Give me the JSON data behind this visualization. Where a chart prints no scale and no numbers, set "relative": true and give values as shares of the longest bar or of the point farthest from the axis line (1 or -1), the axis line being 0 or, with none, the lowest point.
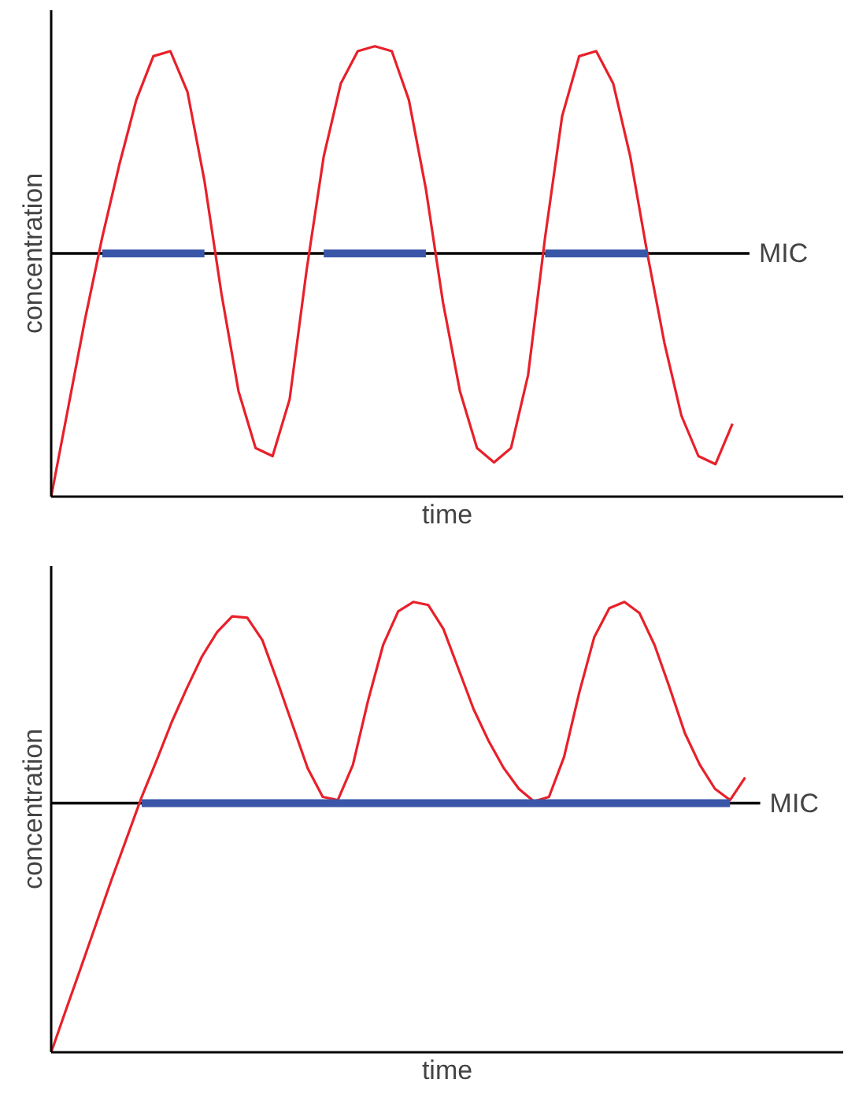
{
  "chart_data": [
    {
      "type": "line",
      "relative": true,
      "xlabel": "time",
      "ylabel": "concentration",
      "marker": "none",
      "line_style": "solid",
      "categories": [
        null,
        null,
        null,
        null,
        null,
        null,
        null,
        null,
        null,
        null,
        null,
        null,
        null,
        null,
        null,
        null,
        null,
        null,
        null,
        null,
        null,
        null,
        null,
        null,
        null,
        null,
        null,
        null,
        null,
        null,
        null,
        null,
        null,
        null,
        null,
        null,
        null,
        null,
        null,
        null,
        null
      ],
      "series": [
        {
          "color": "#e8202a",
          "values": [
            0,
            0.198,
            0.396,
            0.576,
            0.737,
            0.881,
            0.978,
            0.989,
            0.899,
            0.701,
            0.45,
            0.234,
            0.108,
            0.09,
            0.216,
            0.504,
            0.755,
            0.917,
            0.989,
            1,
            0.989,
            0.881,
            0.683,
            0.432,
            0.234,
            0.108,
            0.076,
            0.108,
            0.27,
            0.576,
            0.845,
            0.978,
            0.989,
            0.917,
            0.755,
            0.54,
            0.342,
            0.18,
            0.09,
            0.072,
            0.162
          ]
        },
        {
          "color": "#3a56a8",
          "values": [
            null,
            null,
            null,
            0.54,
            0.54,
            0.54,
            0.54,
            0.54,
            0.54,
            0.54,
            null,
            null,
            null,
            null,
            null,
            null,
            0.54,
            0.54,
            0.54,
            0.54,
            0.54,
            0.54,
            0.54,
            null,
            null,
            null,
            null,
            null,
            null,
            0.54,
            0.54,
            0.54,
            0.54,
            0.54,
            0.54,
            0.54,
            null,
            null,
            null,
            null,
            null
          ]
        }
      ],
      "ref_lines": [
        {
          "axis": "y",
          "value": 0.54,
          "label": "MIC",
          "color": "#000000"
        }
      ]
    },
    {
      "type": "line",
      "relative": true,
      "xlabel": "time",
      "ylabel": "concentration",
      "marker": "none",
      "line_style": "solid",
      "categories": [
        null,
        null,
        null,
        null,
        null,
        null,
        null,
        null,
        null,
        null,
        null,
        null,
        null,
        null,
        null,
        null,
        null,
        null,
        null,
        null,
        null,
        null,
        null,
        null,
        null,
        null,
        null,
        null,
        null,
        null,
        null,
        null,
        null,
        null,
        null,
        null,
        null,
        null,
        null,
        null,
        null,
        null,
        null,
        null,
        null,
        null,
        null
      ],
      "series": [
        {
          "color": "#e8202a",
          "values": [
            0,
            0.096,
            0.191,
            0.287,
            0.383,
            0.475,
            0.567,
            0.649,
            0.734,
            0.809,
            0.879,
            0.933,
            0.968,
            0.965,
            0.915,
            0.823,
            0.727,
            0.631,
            0.567,
            0.56,
            0.638,
            0.78,
            0.904,
            0.979,
            1,
            0.993,
            0.94,
            0.851,
            0.762,
            0.691,
            0.631,
            0.585,
            0.557,
            0.567,
            0.656,
            0.798,
            0.922,
            0.986,
            1,
            0.975,
            0.904,
            0.809,
            0.709,
            0.638,
            0.585,
            0.56,
            0.61
          ]
        },
        {
          "color": "#3a56a8",
          "values": [
            null,
            null,
            null,
            null,
            null,
            null,
            0.553,
            0.553,
            0.553,
            0.553,
            0.553,
            0.553,
            0.553,
            0.553,
            0.553,
            0.553,
            0.553,
            0.553,
            0.553,
            0.553,
            0.553,
            0.553,
            0.553,
            0.553,
            0.553,
            0.553,
            0.553,
            0.553,
            0.553,
            0.553,
            0.553,
            0.553,
            0.553,
            0.553,
            0.553,
            0.553,
            0.553,
            0.553,
            0.553,
            0.553,
            0.553,
            0.553,
            0.553,
            0.553,
            0.553,
            0.553,
            null
          ]
        }
      ],
      "ref_lines": [
        {
          "axis": "y",
          "value": 0.553,
          "label": "MIC",
          "color": "#000000"
        }
      ]
    }
  ]
}
